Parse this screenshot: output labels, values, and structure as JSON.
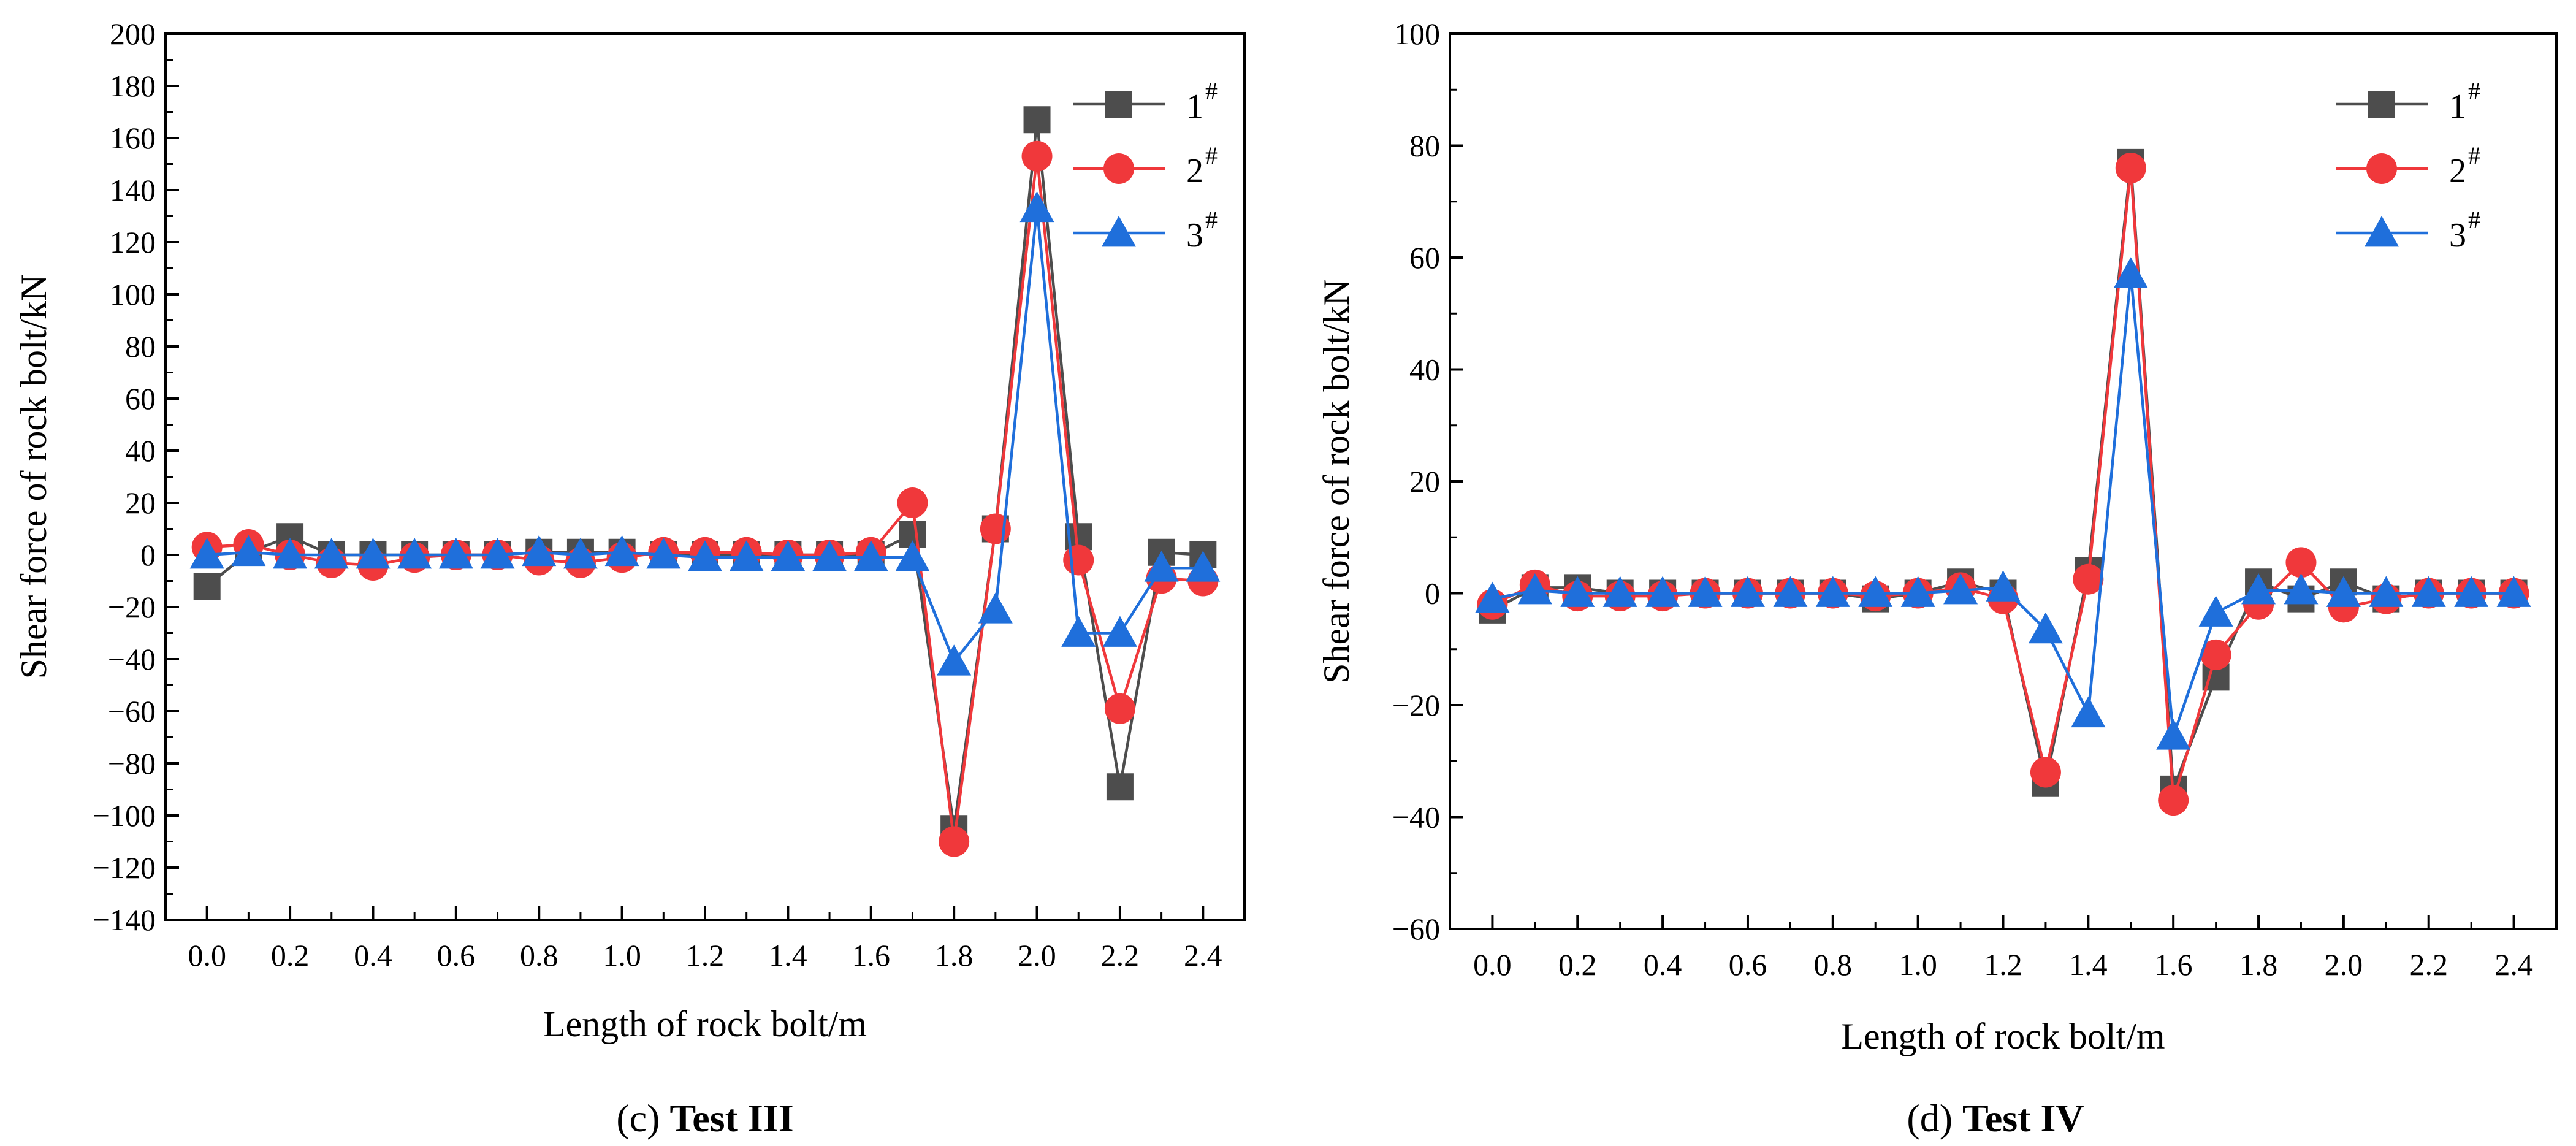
{
  "legend_markers": {
    "1#": "square",
    "2#": "circle",
    "3#": "triangle"
  },
  "chart_data": [
    {
      "type": "line",
      "caption_letter": "c",
      "caption_title": "Test III",
      "xlabel": "Length of rock bolt/m",
      "ylabel": "Shear force of rock bolt/kN",
      "xlim": [
        -0.1,
        2.5
      ],
      "ylim": [
        -140,
        200
      ],
      "xticks": [
        0.0,
        0.2,
        0.4,
        0.6,
        0.8,
        1.0,
        1.2,
        1.4,
        1.6,
        1.8,
        2.0,
        2.2,
        2.4
      ],
      "xtick_labels": [
        "0.0",
        "0.2",
        "0.4",
        "0.6",
        "0.8",
        "1.0",
        "1.2",
        "1.4",
        "1.6",
        "1.8",
        "2.0",
        "2.2",
        "2.4"
      ],
      "yticks": [
        -140,
        -120,
        -100,
        -80,
        -60,
        -40,
        -20,
        0,
        20,
        40,
        60,
        80,
        100,
        120,
        140,
        160,
        180,
        200
      ],
      "ytick_labels": [
        "−140",
        "−120",
        "−100",
        "−80",
        "−60",
        "−40",
        "−20",
        "0",
        "20",
        "40",
        "60",
        "80",
        "100",
        "120",
        "140",
        "160",
        "180",
        "200"
      ],
      "legend_position": "top-right",
      "x": [
        0.0,
        0.1,
        0.2,
        0.3,
        0.4,
        0.5,
        0.6,
        0.7,
        0.8,
        0.9,
        1.0,
        1.1,
        1.2,
        1.3,
        1.4,
        1.5,
        1.6,
        1.7,
        1.8,
        1.9,
        2.0,
        2.1,
        2.2,
        2.3,
        2.4
      ],
      "series": [
        {
          "name": "1",
          "name_sup": "#",
          "color": "#4d4d4d",
          "marker": "square",
          "values": [
            -12,
            1,
            7,
            0,
            0,
            0,
            0,
            0,
            1,
            1,
            1,
            0,
            0,
            0,
            0,
            0,
            0,
            8,
            -105,
            10,
            167,
            7,
            -89,
            1,
            0
          ]
        },
        {
          "name": "2",
          "name_sup": "#",
          "color": "#f0383b",
          "marker": "circle",
          "values": [
            3,
            4,
            0,
            -3,
            -4,
            -1,
            0,
            0,
            -2,
            -3,
            -1,
            1,
            1,
            1,
            0,
            0,
            1,
            20,
            -110,
            10,
            153,
            -2,
            -59,
            -9,
            -10
          ]
        },
        {
          "name": "3",
          "name_sup": "#",
          "color": "#1f6fdb",
          "marker": "triangle",
          "values": [
            0,
            1,
            0,
            0,
            0,
            0,
            0,
            0,
            1,
            0,
            1,
            0,
            -1,
            -1,
            -1,
            -1,
            -1,
            -1,
            -41,
            -21,
            133,
            -30,
            -30,
            -5,
            -5
          ]
        }
      ]
    },
    {
      "type": "line",
      "caption_letter": "d",
      "caption_title": "Test IV",
      "xlabel": "Length of rock bolt/m",
      "ylabel": "Shear force of rock bolt/kN",
      "xlim": [
        -0.1,
        2.5
      ],
      "ylim": [
        -60,
        100
      ],
      "xticks": [
        0.0,
        0.2,
        0.4,
        0.6,
        0.8,
        1.0,
        1.2,
        1.4,
        1.6,
        1.8,
        2.0,
        2.2,
        2.4
      ],
      "xtick_labels": [
        "0.0",
        "0.2",
        "0.4",
        "0.6",
        "0.8",
        "1.0",
        "1.2",
        "1.4",
        "1.6",
        "1.8",
        "2.0",
        "2.2",
        "2.4"
      ],
      "yticks": [
        -60,
        -40,
        -20,
        0,
        20,
        40,
        60,
        80,
        100
      ],
      "ytick_labels": [
        "−60",
        "−40",
        "−20",
        "0",
        "20",
        "40",
        "60",
        "80",
        "100"
      ],
      "legend_position": "top-right",
      "x": [
        0.0,
        0.1,
        0.2,
        0.3,
        0.4,
        0.5,
        0.6,
        0.7,
        0.8,
        0.9,
        1.0,
        1.1,
        1.2,
        1.3,
        1.4,
        1.5,
        1.6,
        1.7,
        1.8,
        1.9,
        2.0,
        2.1,
        2.2,
        2.3,
        2.4
      ],
      "series": [
        {
          "name": "1",
          "name_sup": "#",
          "color": "#4d4d4d",
          "marker": "square",
          "values": [
            -3,
            1,
            1,
            0,
            0,
            0,
            0,
            0,
            0,
            -1,
            0,
            2,
            0,
            -34,
            4,
            77,
            -35,
            -15,
            2,
            -1,
            2,
            -1,
            0,
            0,
            0
          ]
        },
        {
          "name": "2",
          "name_sup": "#",
          "color": "#f0383b",
          "marker": "circle",
          "values": [
            -2,
            1.5,
            -0.5,
            -0.5,
            -0.5,
            0,
            0,
            0,
            0,
            -0.5,
            0,
            1,
            -1,
            -32,
            2.5,
            76,
            -37,
            -11,
            -2,
            5.5,
            -2.5,
            -1,
            0,
            0,
            0
          ]
        },
        {
          "name": "3",
          "name_sup": "#",
          "color": "#1f6fdb",
          "marker": "triangle",
          "values": [
            -1,
            0.5,
            0,
            0,
            0,
            0,
            0,
            0,
            0,
            0,
            0,
            0.5,
            1,
            -6.5,
            -21.5,
            57,
            -25.5,
            -3.5,
            0.5,
            0.5,
            0,
            0,
            0,
            0,
            0
          ]
        }
      ]
    }
  ]
}
